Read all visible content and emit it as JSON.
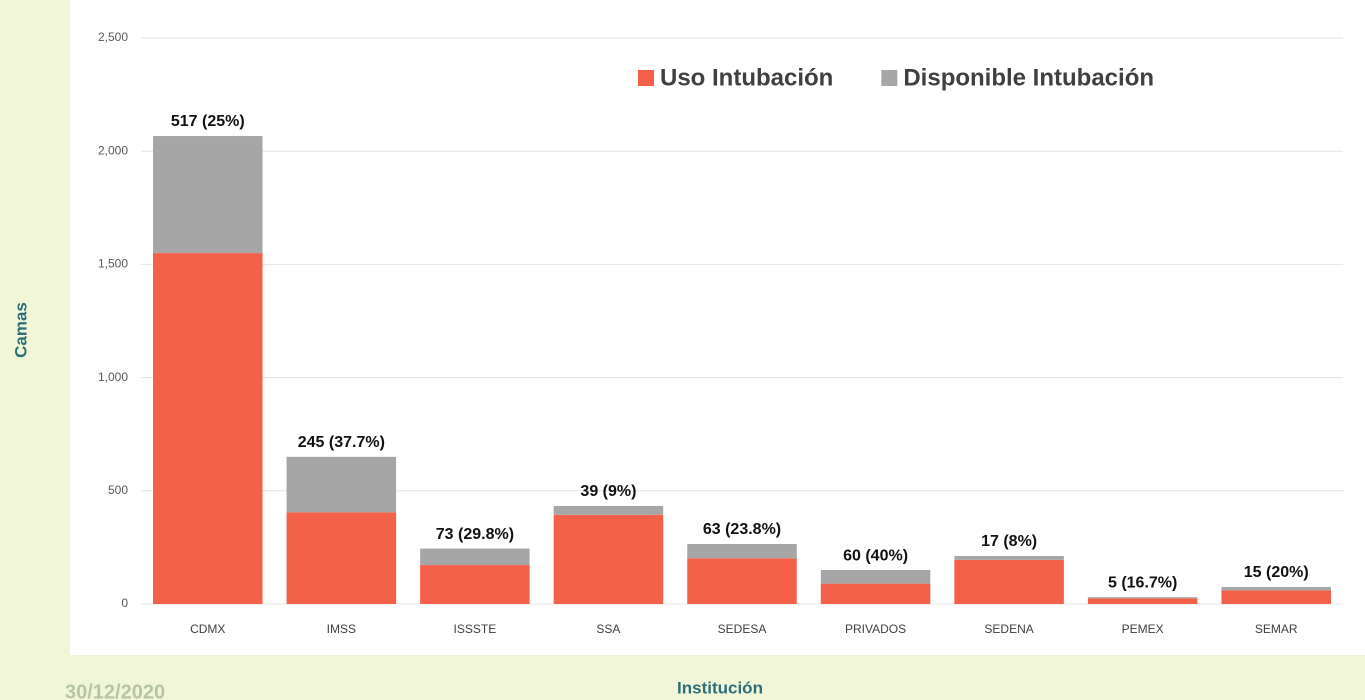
{
  "chart_data": {
    "type": "bar",
    "stacked": true,
    "x_label": "Institución",
    "y_label": "Camas",
    "date": "30/12/2020",
    "categories": [
      "CDMX",
      "IMSS",
      "ISSSTE",
      "SSA",
      "SEDESA",
      "PRIVADOS",
      "SEDENA",
      "PEMEX",
      "SEMAR"
    ],
    "series": [
      {
        "name": "Uso Intubación",
        "color": "#f4604a",
        "values": [
          1550,
          405,
          172,
          394,
          202,
          90,
          195,
          25,
          60
        ]
      },
      {
        "name": "Disponible Intubación",
        "color": "#a6a6a6",
        "values": [
          517,
          245,
          73,
          39,
          63,
          60,
          17,
          5,
          15
        ],
        "value_labels": [
          "517 (25%)",
          "245 (37.7%)",
          "73 (29.8%)",
          "39 (9%)",
          "63 (23.8%)",
          "60 (40%)",
          "17 (8%)",
          "5 (16.7%)",
          "15 (20%)"
        ]
      }
    ],
    "ylim": [
      0,
      2500
    ],
    "yticks": [
      0,
      500,
      {
        "value": 1000,
        "label": "1,000"
      },
      {
        "value": 1500,
        "label": "1,500"
      },
      {
        "value": 2000,
        "label": "2,000"
      },
      {
        "value": 2500,
        "label": "2,500"
      }
    ],
    "grid": true,
    "legend": "top-right"
  }
}
